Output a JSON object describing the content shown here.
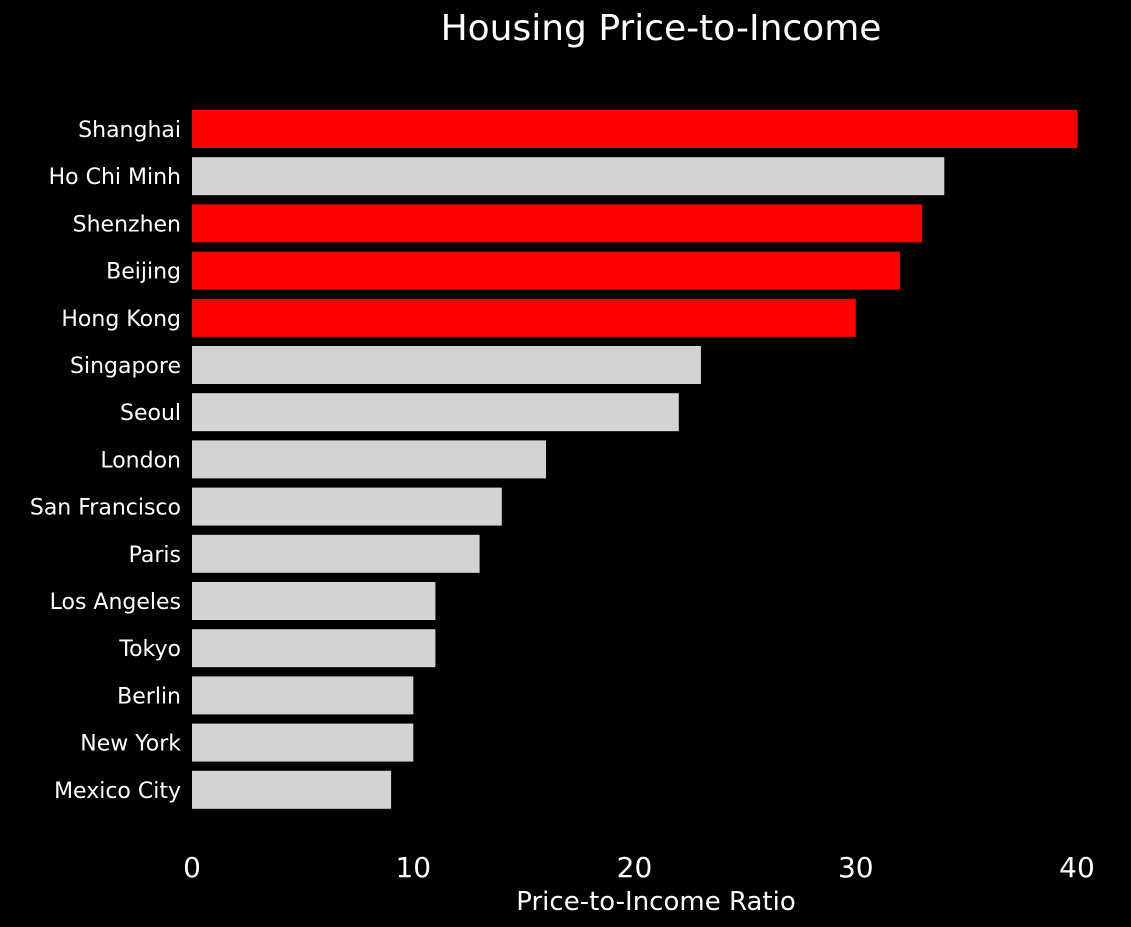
{
  "chart_data": {
    "type": "bar",
    "orientation": "horizontal",
    "title": "Housing Price-to-Income",
    "xlabel": "Price-to-Income Ratio",
    "ylabel": "",
    "xlim": [
      0,
      40
    ],
    "xticks": [
      "0",
      "10",
      "20",
      "30",
      "40"
    ],
    "grid": false,
    "categories": [
      "Shanghai",
      "Ho Chi Minh",
      "Shenzhen",
      "Beijing",
      "Hong Kong",
      "Singapore",
      "Seoul",
      "London",
      "San Francisco",
      "Paris",
      "Los Angeles",
      "Tokyo",
      "Berlin",
      "New York",
      "Mexico City"
    ],
    "values": [
      40,
      34,
      33,
      32,
      30,
      23,
      22,
      16,
      14,
      13,
      11,
      11,
      10,
      10,
      9
    ],
    "highlighted": [
      "Shanghai",
      "Shenzhen",
      "Beijing",
      "Hong Kong"
    ],
    "colors": {
      "background": "#000000",
      "highlight": "#ff0000",
      "default": "#d3d3d3",
      "text": "#ffffff"
    }
  }
}
